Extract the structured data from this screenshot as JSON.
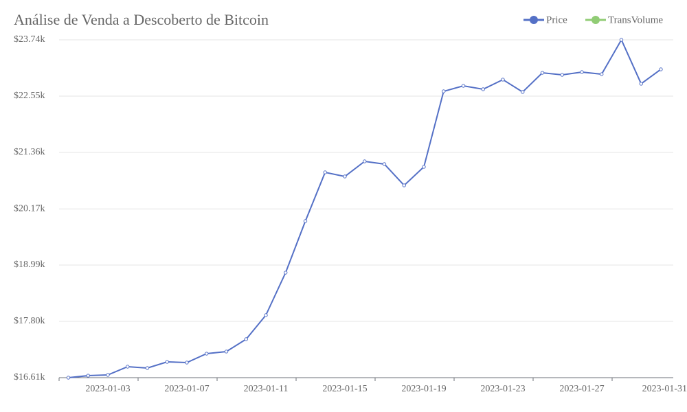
{
  "chart_data": {
    "type": "line",
    "title": "Análise de Venda a Descoberto de Bitcoin",
    "x": [
      "2023-01-01",
      "2023-01-02",
      "2023-01-03",
      "2023-01-04",
      "2023-01-05",
      "2023-01-06",
      "2023-01-07",
      "2023-01-08",
      "2023-01-09",
      "2023-01-10",
      "2023-01-11",
      "2023-01-12",
      "2023-01-13",
      "2023-01-14",
      "2023-01-15",
      "2023-01-16",
      "2023-01-17",
      "2023-01-18",
      "2023-01-19",
      "2023-01-20",
      "2023-01-21",
      "2023-01-22",
      "2023-01-23",
      "2023-01-24",
      "2023-01-25",
      "2023-01-26",
      "2023-01-27",
      "2023-01-28",
      "2023-01-29",
      "2023-01-30",
      "2023-01-31"
    ],
    "series": [
      {
        "name": "Price",
        "color": "#5470c6",
        "values": [
          16610,
          16653,
          16668,
          16842,
          16813,
          16943,
          16929,
          17117,
          17161,
          17422,
          17929,
          18827,
          19914,
          20943,
          20856,
          21175,
          21117,
          20668,
          21059,
          22653,
          22769,
          22697,
          22900,
          22639,
          23044,
          23001,
          23059,
          23015,
          23740,
          22813,
          23117
        ]
      },
      {
        "name": "TransVolume",
        "color": "#91cc75",
        "values": [
          null,
          null,
          null,
          null,
          null,
          null,
          null,
          null,
          null,
          null,
          null,
          null,
          null,
          null,
          null,
          null,
          null,
          null,
          null,
          null,
          null,
          null,
          null,
          null,
          null,
          null,
          null,
          null,
          null,
          null,
          null
        ]
      }
    ],
    "ylim": [
      16610,
      23740
    ],
    "yticks": [
      {
        "value": 16610,
        "label": "$16.61k"
      },
      {
        "value": 17798,
        "label": "$17.80k"
      },
      {
        "value": 18987,
        "label": "$18.99k"
      },
      {
        "value": 20172,
        "label": "$20.17k"
      },
      {
        "value": 21363,
        "label": "$21.36k"
      },
      {
        "value": 22552,
        "label": "$22.55k"
      },
      {
        "value": 23740,
        "label": "$23.74k"
      }
    ],
    "grid": true,
    "legend": "top-right"
  }
}
